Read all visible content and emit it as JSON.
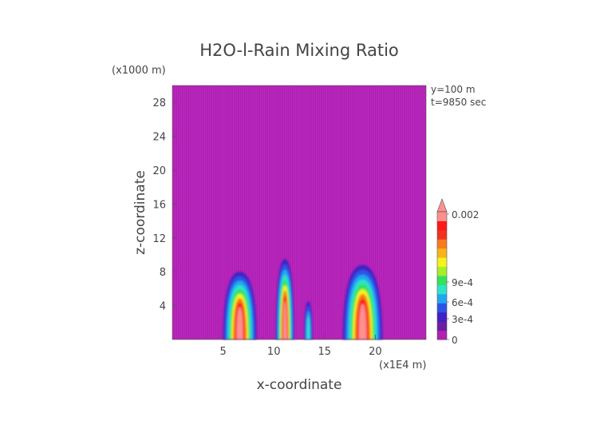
{
  "chart_data": {
    "type": "heatmap",
    "title": "H2O-l-Rain Mixing Ratio",
    "xlabel": "x-coordinate",
    "ylabel": "z-coordinate",
    "x_unit": "(x1E4 m)",
    "y_unit": "(x1000 m)",
    "annotations": [
      "y=100 m",
      "t=9850 sec"
    ],
    "xlim": [
      0,
      25
    ],
    "ylim": [
      0,
      30
    ],
    "x_ticks": [
      "5",
      "10",
      "15",
      "20"
    ],
    "y_ticks": [
      "4",
      "8",
      "12",
      "16",
      "20",
      "24",
      "28"
    ],
    "background_color": "#b11fb4",
    "colorbar": {
      "labels": [
        "0",
        "3e-4",
        "6e-4",
        "9e-4",
        "0.002"
      ],
      "colors": [
        "#b11fb4",
        "#6a1fa0",
        "#3f21c6",
        "#2b54e4",
        "#22a6f2",
        "#2fe3c9",
        "#32e35a",
        "#a6ef2a",
        "#f5f21e",
        "#f7b41c",
        "#f77c1e",
        "#f0321f",
        "#ff1818",
        "#ff9090"
      ]
    },
    "plumes": [
      {
        "x_range": [
          5.0,
          8.3
        ],
        "z_top": 8.0,
        "peak": "high"
      },
      {
        "x_range": [
          10.2,
          12.0
        ],
        "z_top": 9.5,
        "peak": "high"
      },
      {
        "x_range": [
          13.0,
          13.8
        ],
        "z_top": 4.5,
        "peak": "low"
      },
      {
        "x_range": [
          16.8,
          20.7
        ],
        "z_top": 8.8,
        "peak": "high"
      }
    ]
  }
}
